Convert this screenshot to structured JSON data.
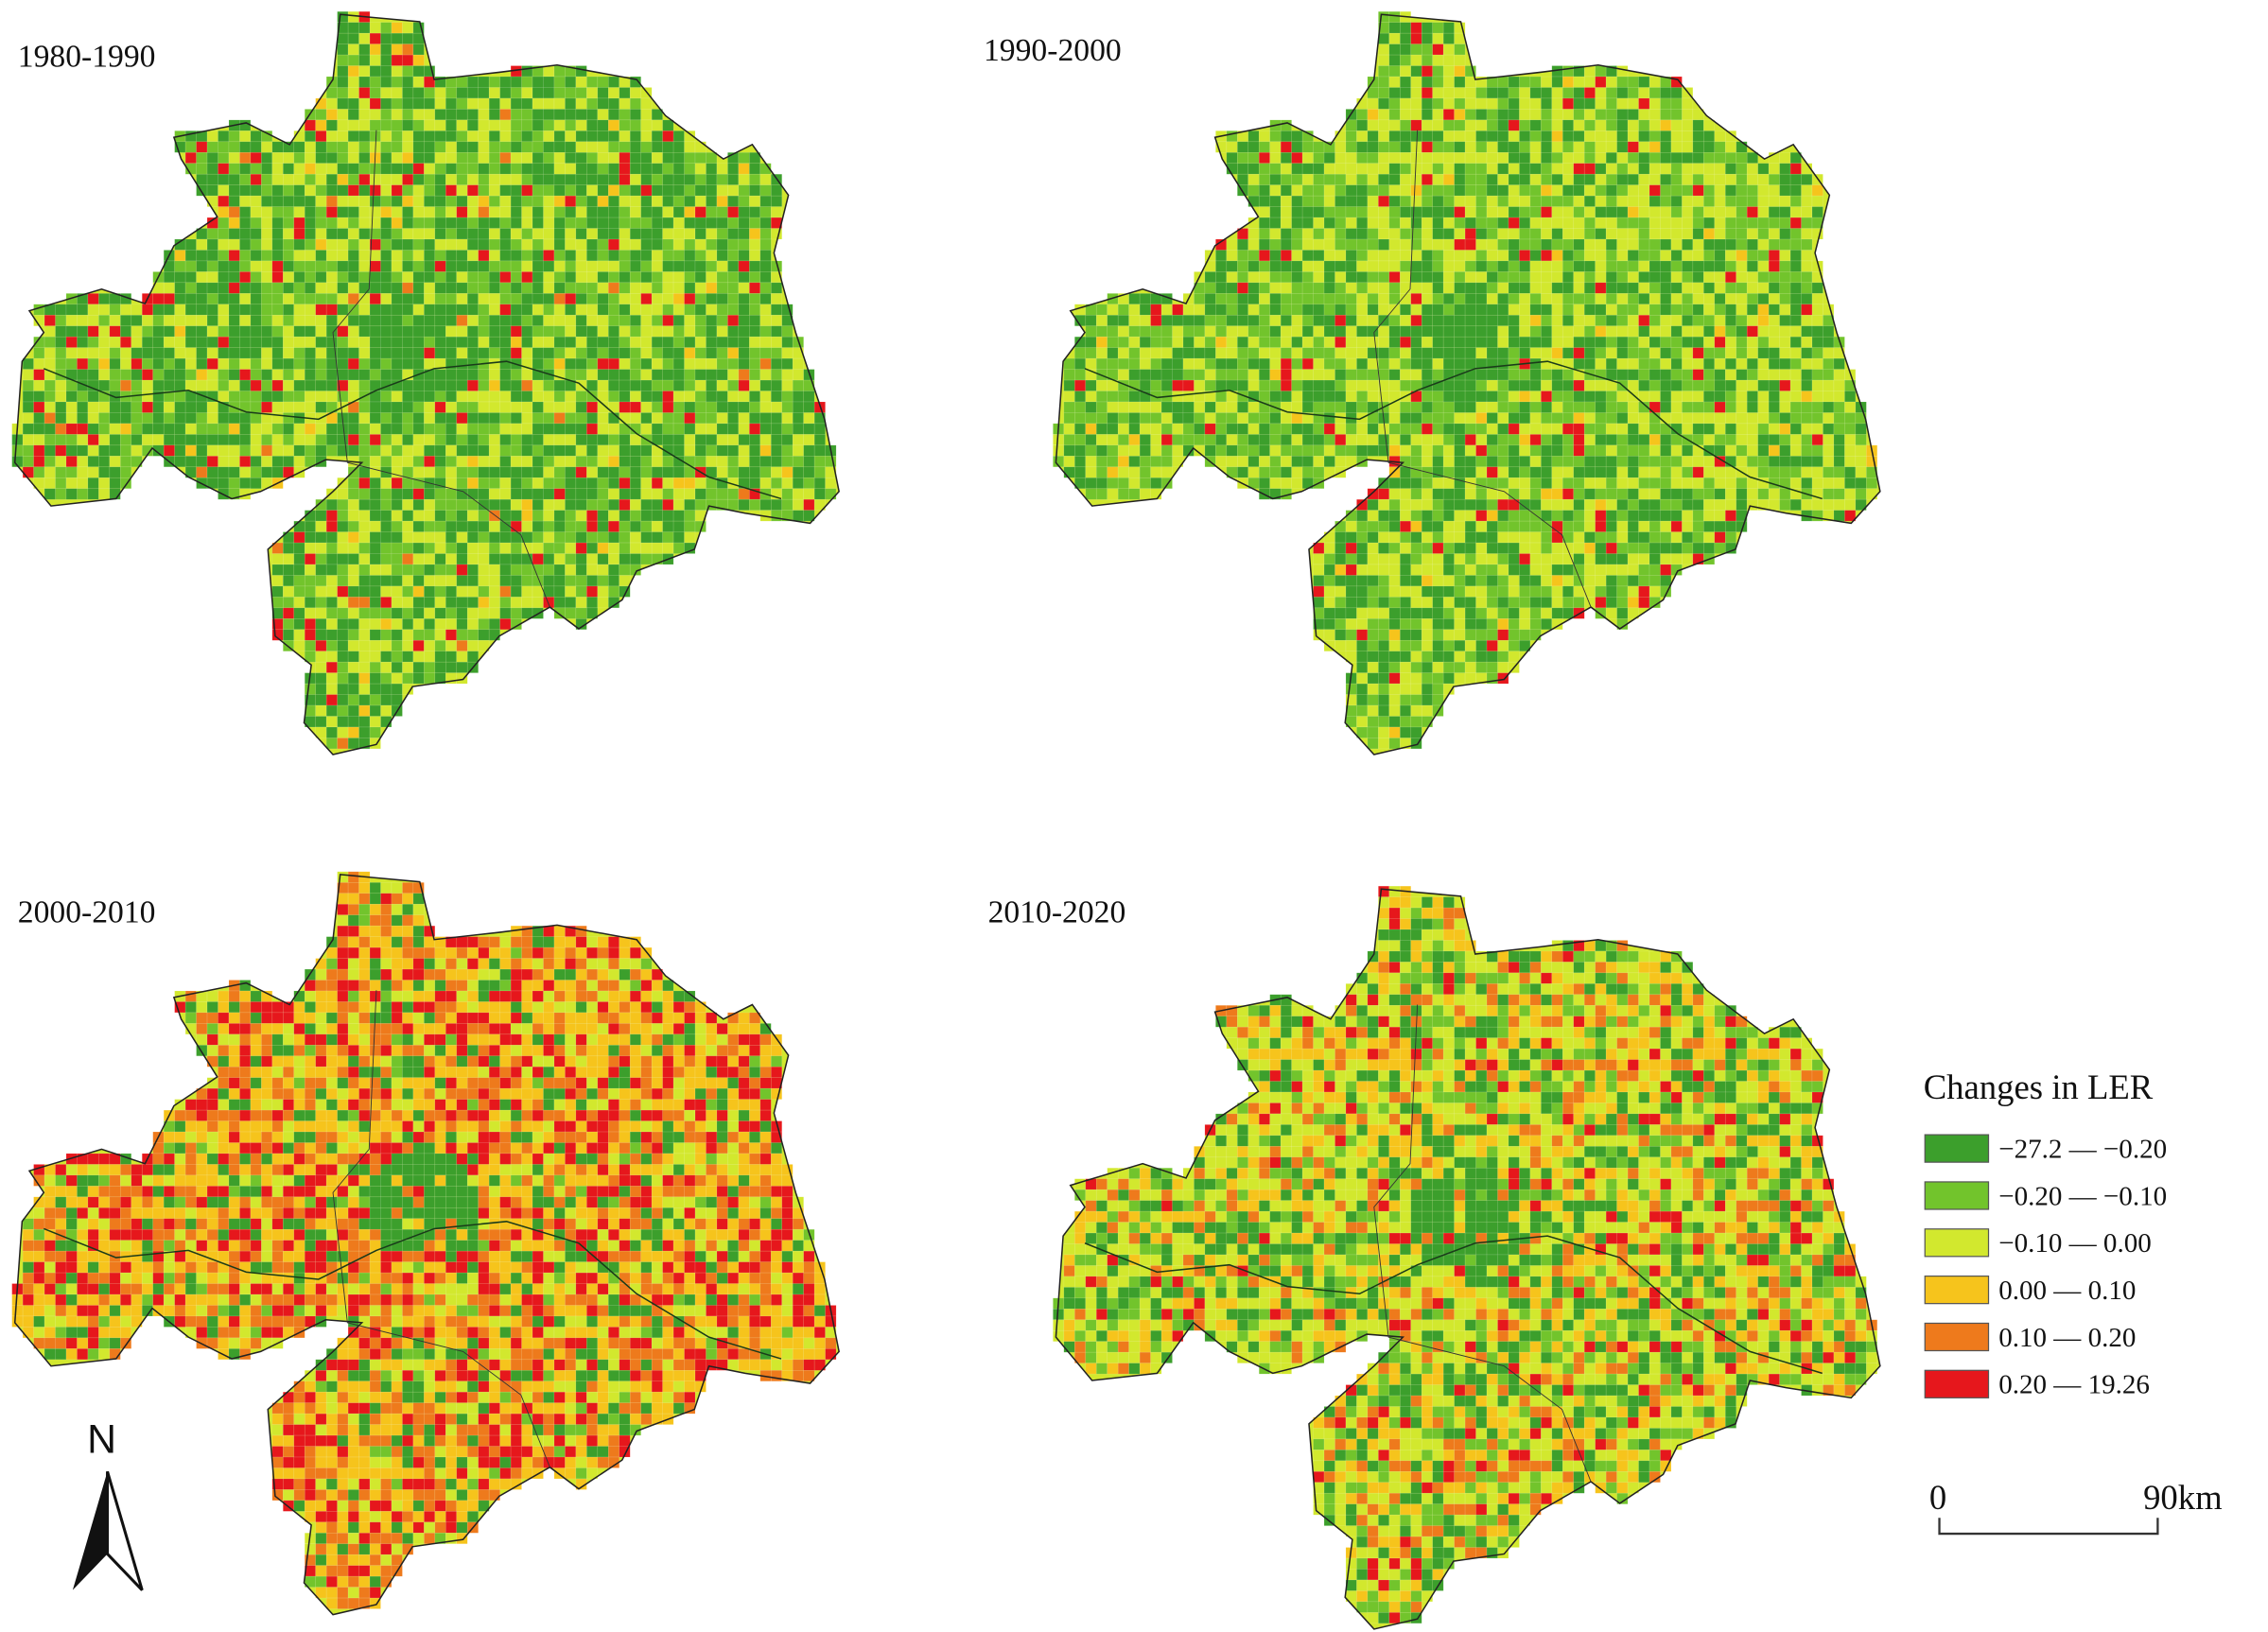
{
  "panels": [
    {
      "title": "1980-1990"
    },
    {
      "title": "1990-2000"
    },
    {
      "title": "2000-2010"
    },
    {
      "title": "2010-2020"
    }
  ],
  "legend": {
    "title": "Changes in LER",
    "items": [
      {
        "label": "−27.2 — −0.20",
        "color": "#3c9f2c"
      },
      {
        "label": "−0.20 — −0.10",
        "color": "#72c42c"
      },
      {
        "label": "−0.10 — 0.00",
        "color": "#d2e82e"
      },
      {
        "label": "0.00 — 0.10",
        "color": "#f6c41c"
      },
      {
        "label": "0.10 — 0.20",
        "color": "#ee7a1c"
      },
      {
        "label": "0.20 — 19.26",
        "color": "#e6171c"
      }
    ]
  },
  "north_arrow": {
    "label": "N"
  },
  "scale_bar": {
    "start": "0",
    "end": "90km"
  }
}
